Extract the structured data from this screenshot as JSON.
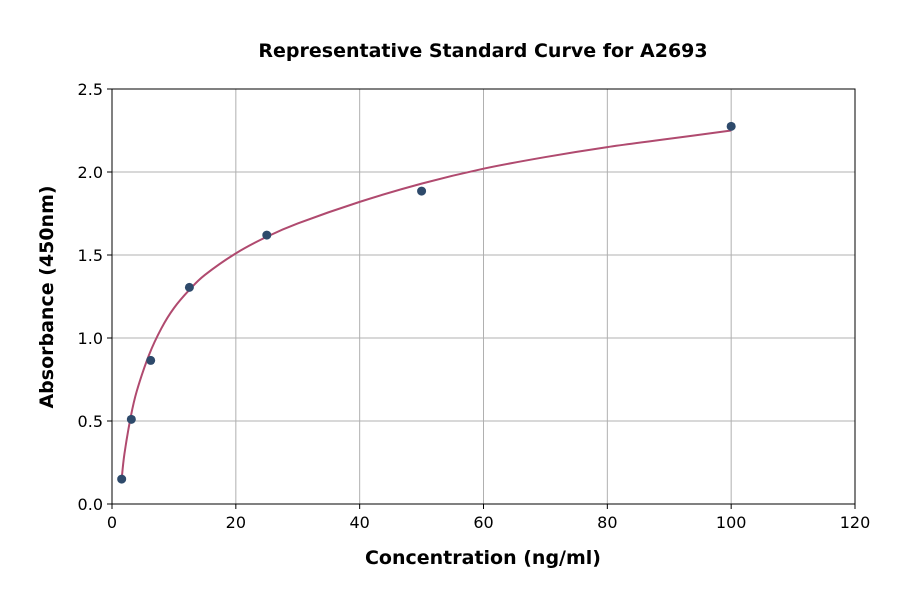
{
  "chart_data": {
    "type": "scatter",
    "title": "Representative Standard Curve for A2693",
    "xlabel": "Concentration (ng/ml)",
    "ylabel": "Absorbance (450nm)",
    "xlim": [
      0,
      120
    ],
    "ylim": [
      0,
      2.5
    ],
    "xticks": [
      0,
      20,
      40,
      60,
      80,
      100,
      120
    ],
    "yticks": [
      0.0,
      0.5,
      1.0,
      1.5,
      2.0,
      2.5
    ],
    "xtick_labels": [
      "0",
      "20",
      "40",
      "60",
      "80",
      "100",
      "120"
    ],
    "ytick_labels": [
      "0.0",
      "0.5",
      "1.0",
      "1.5",
      "2.0",
      "2.5"
    ],
    "grid": true,
    "points": {
      "x": [
        1.5625,
        3.125,
        6.25,
        12.5,
        25,
        50,
        100
      ],
      "y": [
        0.15,
        0.51,
        0.865,
        1.305,
        1.62,
        1.885,
        2.275
      ]
    },
    "fit_curve": {
      "x": [
        1.5625,
        2,
        3,
        4,
        6,
        8,
        10,
        12.5,
        15,
        20,
        25,
        30,
        40,
        50,
        60,
        70,
        80,
        90,
        100
      ],
      "y": [
        0.15,
        0.3,
        0.52,
        0.68,
        0.9,
        1.06,
        1.18,
        1.29,
        1.38,
        1.51,
        1.61,
        1.69,
        1.82,
        1.93,
        2.02,
        2.09,
        2.15,
        2.2,
        2.25
      ]
    },
    "colors": {
      "points": "#2e4a6b",
      "curve": "#b04a6f",
      "grid": "#b0b0b0"
    }
  }
}
